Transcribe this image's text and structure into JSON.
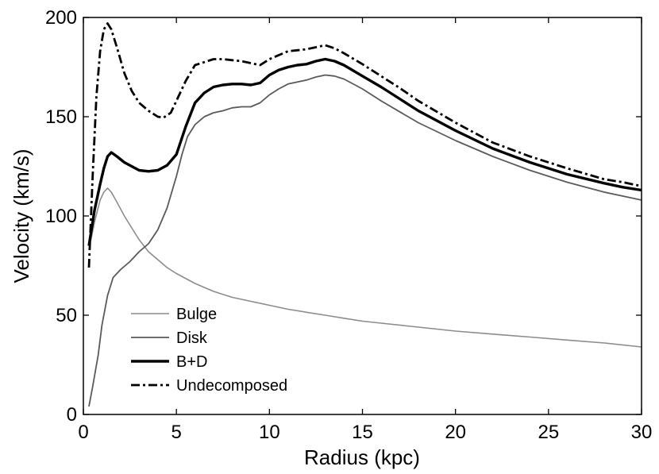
{
  "chart_data": {
    "type": "line",
    "title": "",
    "xlabel": "Radius (kpc)",
    "ylabel": "Velocity (km/s)",
    "xlim": [
      0,
      30
    ],
    "ylim": [
      0,
      200
    ],
    "xticks": [
      0,
      5,
      10,
      15,
      20,
      25,
      30
    ],
    "yticks": [
      0,
      50,
      100,
      150,
      200
    ],
    "xtick_labels": [
      "0",
      "5",
      "10",
      "15",
      "20",
      "25",
      "30"
    ],
    "ytick_labels": [
      "0",
      "50",
      "100",
      "150",
      "200"
    ],
    "grid": false,
    "legend_position": "lower-left",
    "series": [
      {
        "name": "Bulge",
        "color": "#8c8c8c",
        "style": "thin-solid",
        "x": [
          0.3,
          0.6,
          0.9,
          1.1,
          1.3,
          1.5,
          1.8,
          2.2,
          2.6,
          3.0,
          3.5,
          4.0,
          4.5,
          5.0,
          6.0,
          7.0,
          8.0,
          9.0,
          10.0,
          11.0,
          12.0,
          13.0,
          14.0,
          15.0,
          16.0,
          18.0,
          20.0,
          22.0,
          24.0,
          26.0,
          28.0,
          30.0
        ],
        "y": [
          83,
          97,
          108,
          112,
          114,
          112,
          107,
          100,
          94,
          88,
          82,
          78,
          74,
          71,
          66,
          62,
          59,
          57,
          55,
          53,
          51.5,
          50,
          48.5,
          47,
          46,
          44,
          42,
          40.5,
          39,
          37.5,
          36,
          34
        ]
      },
      {
        "name": "Disk",
        "color": "#5a5a5a",
        "style": "solid",
        "x": [
          0.3,
          0.5,
          0.8,
          1.0,
          1.3,
          1.6,
          2.0,
          2.5,
          3.0,
          3.5,
          4.0,
          4.5,
          5.0,
          5.3,
          5.6,
          6.0,
          6.5,
          7.0,
          7.5,
          8.0,
          8.5,
          9.0,
          9.5,
          10.0,
          10.5,
          11.0,
          11.5,
          12.0,
          12.5,
          13.0,
          13.5,
          14.0,
          15.0,
          16.0,
          17.0,
          18.0,
          20.0,
          22.0,
          24.0,
          26.0,
          28.0,
          29.0,
          30.0
        ],
        "y": [
          4,
          14,
          30,
          45,
          60,
          69,
          73,
          77,
          82,
          86,
          93,
          104,
          120,
          131,
          140,
          146,
          150,
          152,
          153,
          154.5,
          155,
          155,
          157,
          161,
          164,
          166.5,
          167.5,
          168.5,
          170,
          171,
          170.5,
          169,
          164,
          158,
          152.5,
          147,
          138,
          130,
          123,
          117,
          112,
          110,
          108
        ]
      },
      {
        "name": "B+D",
        "color": "#000000",
        "style": "thick-solid",
        "x": [
          0.3,
          0.6,
          0.9,
          1.1,
          1.3,
          1.5,
          1.8,
          2.2,
          2.6,
          3.0,
          3.5,
          4.0,
          4.5,
          5.0,
          5.5,
          6.0,
          6.5,
          7.0,
          7.5,
          8.0,
          8.5,
          9.0,
          9.5,
          10.0,
          10.5,
          11.0,
          11.5,
          12.0,
          12.5,
          13.0,
          13.5,
          14.0,
          15.0,
          16.0,
          17.0,
          18.0,
          20.0,
          22.0,
          24.0,
          26.0,
          28.0,
          29.0,
          30.0
        ],
        "y": [
          85,
          103,
          116,
          124,
          130,
          132,
          130,
          127,
          125,
          123,
          122.5,
          123,
          125.5,
          131,
          145,
          157,
          162,
          165,
          166,
          166.5,
          166.5,
          166,
          167,
          171,
          173.5,
          175,
          176,
          176.5,
          178,
          179,
          178,
          176,
          170.5,
          165,
          159,
          153,
          143,
          134,
          127,
          121,
          116.5,
          114.5,
          113
        ]
      },
      {
        "name": "Undecomposed",
        "color": "#000000",
        "style": "dash-dot",
        "x": [
          0.3,
          0.5,
          0.7,
          0.9,
          1.1,
          1.3,
          1.5,
          1.8,
          2.2,
          2.6,
          3.0,
          3.5,
          4.0,
          4.3,
          4.7,
          5.0,
          5.5,
          6.0,
          6.5,
          7.0,
          7.5,
          8.0,
          8.5,
          9.0,
          9.5,
          10.0,
          10.5,
          11.0,
          11.5,
          12.0,
          12.5,
          13.0,
          13.5,
          14.0,
          15.0,
          16.0,
          17.0,
          18.0,
          20.0,
          22.0,
          24.0,
          26.0,
          28.0,
          29.0,
          30.0
        ],
        "y": [
          74,
          120,
          160,
          183,
          194,
          197,
          194,
          185,
          172,
          163,
          157,
          153,
          150,
          149.5,
          152,
          158,
          168,
          176,
          177.5,
          179,
          179,
          178.5,
          178,
          177,
          176,
          179,
          181,
          183,
          183.5,
          184,
          185,
          186,
          184.5,
          182,
          176.5,
          170.5,
          164.5,
          158,
          147,
          137,
          130,
          124,
          118.5,
          117,
          115
        ]
      }
    ]
  }
}
